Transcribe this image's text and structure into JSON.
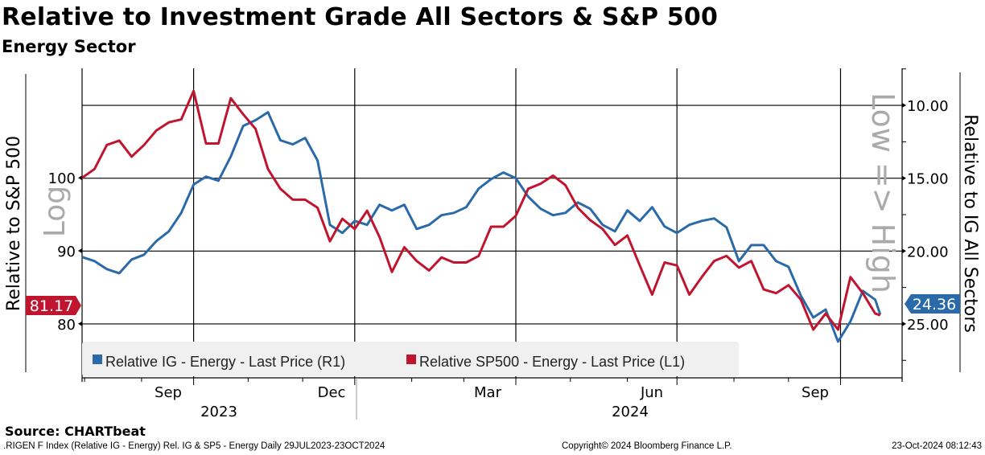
{
  "title": "Relative to Investment Grade All Sectors & S&P 500",
  "subtitle": "Energy Sector",
  "source": "Source: CHARTbeat",
  "footer": {
    "left": ".RIGEN F Index (Relative IG - Energy) Rel. IG & SP5 - Energy  Daily 29JUL2023-23OCT2024",
    "center": "Copyright© 2024 Bloomberg Finance L.P.",
    "right": "23-Oct-2024 08:12:43"
  },
  "chart_data": {
    "type": "line",
    "title": "Relative to Investment Grade All Sectors & S&P 500",
    "subtitle": "Energy Sector",
    "x_range": [
      "2023-07-29",
      "2024-10-23"
    ],
    "x_tick_labels": [
      "Sep",
      "Dec",
      "Mar",
      "Jun",
      "Sep"
    ],
    "x_year_labels": [
      "2023",
      "2024"
    ],
    "left_axis": {
      "label": "Relative to S&P 500",
      "scale_note": "Log",
      "ticks": [
        "100",
        "90",
        "80"
      ],
      "tick_values": [
        100,
        90,
        80
      ],
      "range": [
        72.6,
        115
      ]
    },
    "right_axis": {
      "label": "Relative to IG All Sectors",
      "scale_note": "Low => High",
      "inverted": true,
      "ticks": [
        "10.00",
        "15.00",
        "20.00",
        "25.00"
      ],
      "tick_values": [
        10,
        15,
        20,
        25
      ],
      "range": [
        7.46,
        28.7
      ]
    },
    "grid": true,
    "legend_placement": "bottom-left",
    "dates": [
      "2023-07-31",
      "2023-08-07",
      "2023-08-14",
      "2023-08-21",
      "2023-08-28",
      "2023-09-04",
      "2023-09-11",
      "2023-09-18",
      "2023-09-25",
      "2023-10-02",
      "2023-10-09",
      "2023-10-16",
      "2023-10-23",
      "2023-10-30",
      "2023-11-06",
      "2023-11-13",
      "2023-11-20",
      "2023-11-27",
      "2023-12-04",
      "2023-12-11",
      "2023-12-18",
      "2023-12-25",
      "2024-01-01",
      "2024-01-08",
      "2024-01-15",
      "2024-01-22",
      "2024-01-29",
      "2024-02-05",
      "2024-02-12",
      "2024-02-19",
      "2024-02-26",
      "2024-03-04",
      "2024-03-11",
      "2024-03-18",
      "2024-03-25",
      "2024-04-01",
      "2024-04-08",
      "2024-04-15",
      "2024-04-22",
      "2024-04-29",
      "2024-05-06",
      "2024-05-13",
      "2024-05-20",
      "2024-05-27",
      "2024-06-03",
      "2024-06-10",
      "2024-06-17",
      "2024-06-24",
      "2024-07-01",
      "2024-07-08",
      "2024-07-15",
      "2024-07-22",
      "2024-07-29",
      "2024-08-05",
      "2024-08-12",
      "2024-08-19",
      "2024-08-26",
      "2024-09-02",
      "2024-09-09",
      "2024-09-16",
      "2024-09-23",
      "2024-09-30",
      "2024-10-07",
      "2024-10-14",
      "2024-10-21",
      "2024-10-23"
    ],
    "series": [
      {
        "name": "Relative IG - Energy - Last Price (R1)",
        "axis": "right",
        "color": "#2b6aa8",
        "last": "24.36",
        "values": [
          20.41,
          20.69,
          21.24,
          21.52,
          20.58,
          20.25,
          19.31,
          18.65,
          17.38,
          15.44,
          14.89,
          15.17,
          13.51,
          11.41,
          11.02,
          10.47,
          12.4,
          12.68,
          12.24,
          13.78,
          18.2,
          18.76,
          17.93,
          18.2,
          16.82,
          17.21,
          16.82,
          18.48,
          18.2,
          17.54,
          17.38,
          16.99,
          15.72,
          15.06,
          14.61,
          15.0,
          16.27,
          17.1,
          17.54,
          17.38,
          16.66,
          17.1,
          18.2,
          18.65,
          17.21,
          17.93,
          16.99,
          18.31,
          18.76,
          18.2,
          17.93,
          17.76,
          18.37,
          20.69,
          19.59,
          19.59,
          20.69,
          21.08,
          23.07,
          24.56,
          24.01,
          26.22,
          24.83,
          22.73,
          23.34,
          24.36
        ]
      },
      {
        "name": "Relative SP500 - Energy - Last Price (L1)",
        "axis": "left",
        "color": "#c0152f",
        "last": "81.17",
        "values": [
          100.0,
          101.2,
          104.5,
          105.1,
          102.9,
          104.5,
          106.5,
          107.6,
          108.0,
          111.9,
          104.7,
          104.7,
          110.9,
          108.7,
          106.7,
          101.2,
          98.5,
          97.0,
          97.0,
          95.9,
          91.3,
          94.4,
          93.0,
          95.5,
          91.9,
          87.1,
          90.5,
          88.6,
          87.3,
          89.1,
          88.4,
          88.4,
          89.3,
          93.3,
          93.3,
          94.8,
          98.5,
          99.2,
          100.3,
          99.0,
          95.9,
          94.2,
          93.0,
          90.8,
          92.1,
          88.0,
          84.0,
          88.4,
          88.0,
          84.0,
          86.4,
          88.6,
          89.3,
          87.7,
          88.6,
          84.7,
          84.2,
          85.3,
          83.3,
          79.2,
          81.4,
          79.2,
          86.4,
          84.2,
          81.4,
          81.17
        ]
      }
    ]
  }
}
